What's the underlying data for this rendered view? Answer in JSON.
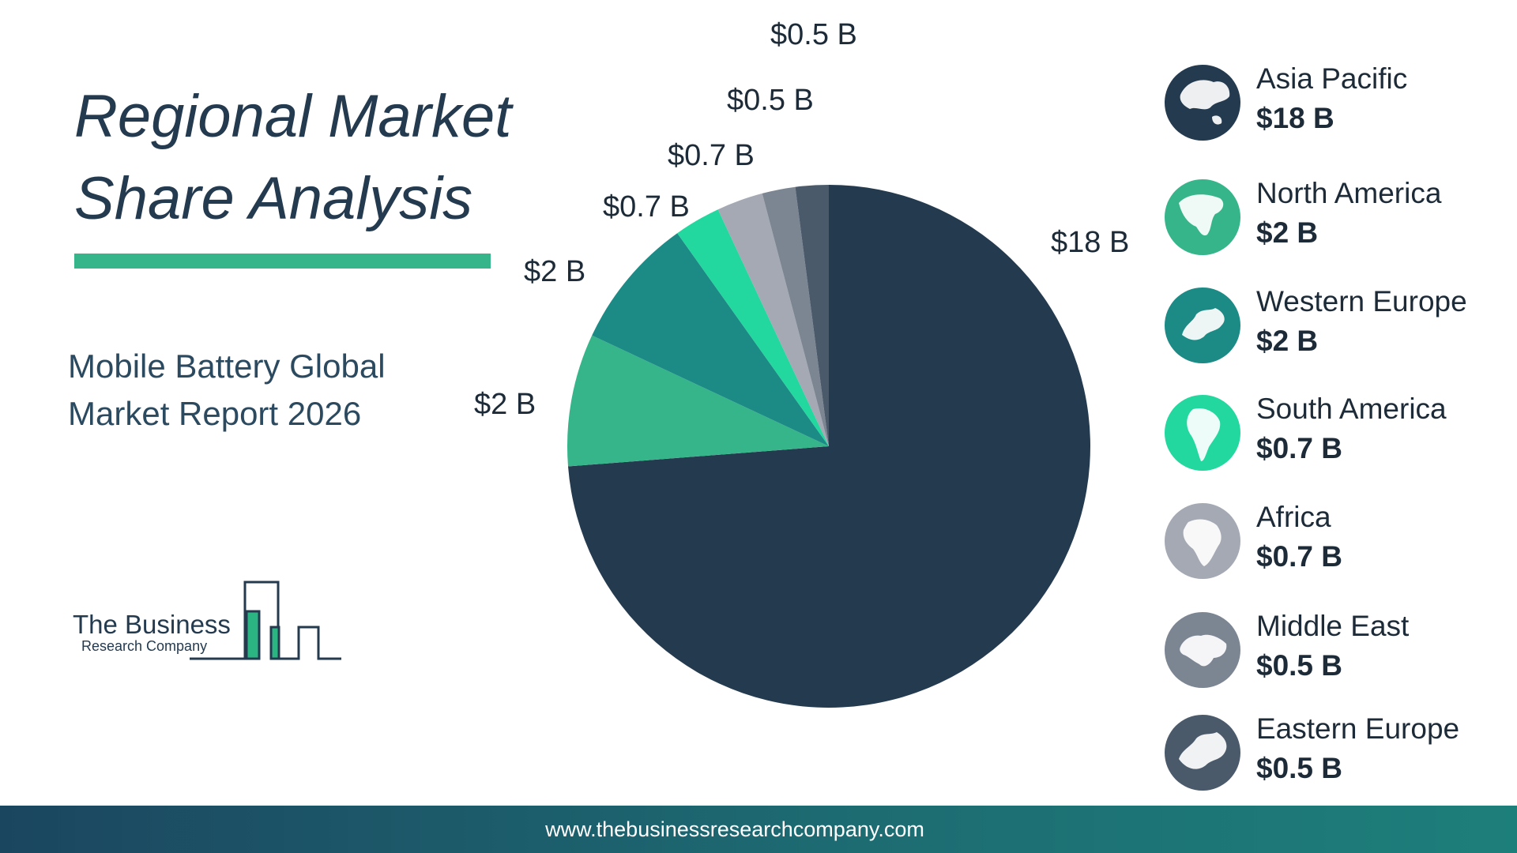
{
  "header": {
    "title_line1": "Regional Market",
    "title_line2": "Share Analysis",
    "subtitle_line1": "Mobile Battery Global",
    "subtitle_line2": "Market Report 2026"
  },
  "logo": {
    "line1": "The Business",
    "line2": "Research Company"
  },
  "footer": {
    "url": "www.thebusinessresearchcompany.com"
  },
  "colors": {
    "accent": "#36b58a",
    "text": "#243a4f"
  },
  "chart_data": {
    "type": "pie",
    "title": "",
    "unit": "$ B",
    "legend_position": "right",
    "slices": [
      {
        "name": "Asia Pacific",
        "value": 18,
        "label": "$18 B",
        "color": "#243a4f",
        "icon": "asia-pacific-map-icon"
      },
      {
        "name": "North America",
        "value": 2,
        "label": "$2 B",
        "color": "#36b58a",
        "icon": "north-america-map-icon"
      },
      {
        "name": "Western Europe",
        "value": 2,
        "label": "$2 B",
        "color": "#1c8a85",
        "icon": "western-europe-map-icon"
      },
      {
        "name": "South America",
        "value": 0.7,
        "label": "$0.7 B",
        "color": "#22d89f",
        "icon": "south-america-map-icon"
      },
      {
        "name": "Africa",
        "value": 0.7,
        "label": "$0.7 B",
        "color": "#a4a9b3",
        "icon": "africa-map-icon"
      },
      {
        "name": "Middle East",
        "value": 0.5,
        "label": "$0.5 B",
        "color": "#7c8693",
        "icon": "middle-east-map-icon"
      },
      {
        "name": "Eastern Europe",
        "value": 0.5,
        "label": "$0.5 B",
        "color": "#4b5a6b",
        "icon": "eastern-europe-map-icon"
      }
    ]
  }
}
